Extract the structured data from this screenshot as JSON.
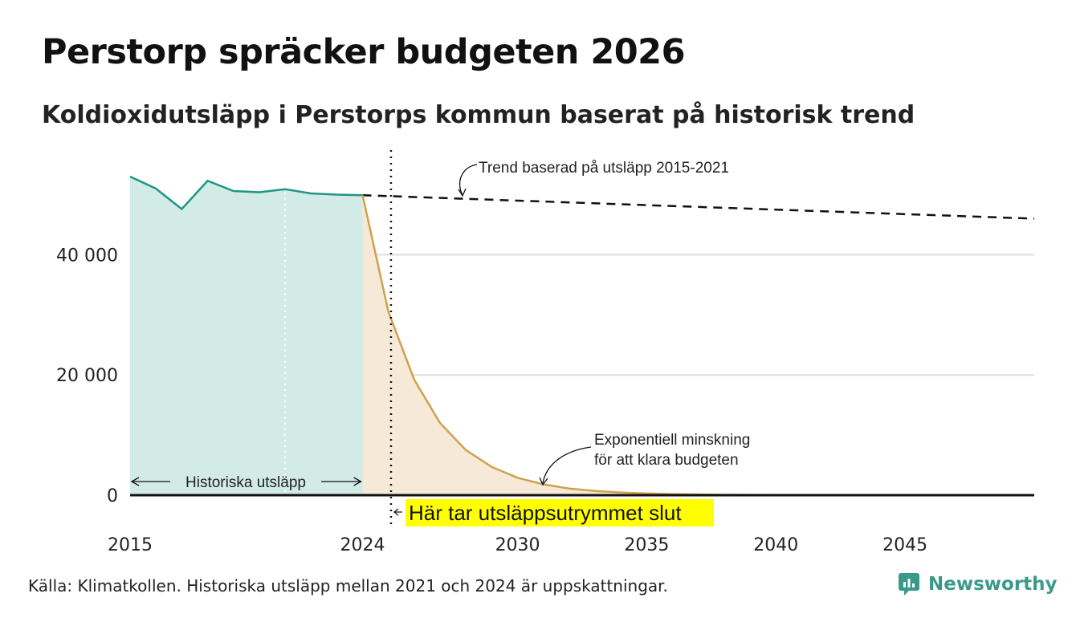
{
  "title": "Perstorp spräcker budgeten 2026",
  "subtitle": "Koldioxidutsläpp i Perstorps kommun baserat på historisk trend",
  "source": "Källa: Klimatkollen. Historiska utsläpp mellan 2021 och 2024 är uppskattningar.",
  "brand": {
    "name": "Newsworthy",
    "logo_icon": "newsworthy-logo-icon"
  },
  "colors": {
    "historical_line": "#1f9683",
    "historical_fill": "#d2ebe7",
    "budget_line": "#d0a14e",
    "budget_fill": "#f6e9d8",
    "trend_line": "#111111",
    "highlight": "#ffff00",
    "gridline": "#dddddd",
    "brand": "#3a9a8a"
  },
  "chart_data": {
    "type": "area",
    "xlim": [
      2015,
      2050
    ],
    "ylim": [
      0,
      53000
    ],
    "y_ticks": [
      0,
      20000,
      40000
    ],
    "y_tick_labels": [
      "0",
      "20 000",
      "40 000"
    ],
    "x_ticks": [
      2015,
      2024,
      2030,
      2035,
      2040,
      2045
    ],
    "x_tick_labels": [
      "2015",
      "2024",
      "2030",
      "2035",
      "2040",
      "2045"
    ],
    "series": [
      {
        "name": "Historiska utsläpp",
        "style": "area",
        "x": [
          2015,
          2016,
          2017,
          2018,
          2019,
          2020,
          2021,
          2022,
          2023,
          2024
        ],
        "y": [
          53000,
          51000,
          47600,
          52300,
          50600,
          50400,
          50900,
          50200,
          50000,
          49900
        ]
      },
      {
        "name": "Trend baserad på utsläpp 2015-2021",
        "style": "dashed",
        "x": [
          2024,
          2050
        ],
        "y": [
          49900,
          46000
        ]
      },
      {
        "name": "Exponentiell minskning för att klara budgeten",
        "style": "area",
        "x": [
          2024,
          2025,
          2026,
          2027,
          2028,
          2029,
          2030,
          2031,
          2032,
          2033,
          2034,
          2035,
          2036,
          2037,
          2038,
          2040,
          2045,
          2050
        ],
        "y": [
          49900,
          30500,
          19200,
          12000,
          7500,
          4700,
          2900,
          1800,
          1100,
          700,
          450,
          280,
          180,
          110,
          70,
          30,
          5,
          0
        ]
      }
    ],
    "reference_lines": [
      {
        "x": 2021,
        "style": "dotted-white"
      },
      {
        "x": 2025.1,
        "style": "dotted-black",
        "label": "Här tar utsläppsutrymmet slut"
      }
    ],
    "annotations": {
      "historical_span": "Historiska utsläpp",
      "trend": "Trend baserad på utsläpp 2015-2021",
      "exp_line1": "Exponentiell minskning",
      "exp_line2": "för att klara budgeten",
      "budget_end": "Här tar utsläppsutrymmet slut"
    }
  }
}
